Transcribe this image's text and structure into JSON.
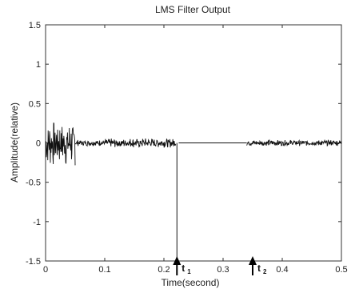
{
  "chart_data": {
    "type": "line",
    "title": "LMS Filter Output",
    "xlabel": "Time(second)",
    "ylabel": "Amplitude(relative)",
    "xlim": [
      0,
      0.5
    ],
    "ylim": [
      -1.5,
      1.5
    ],
    "x_ticks": [
      "0",
      "0.1",
      "0.2",
      "0.3",
      "0.4",
      "0.5"
    ],
    "y_ticks": [
      "1.5",
      "1",
      "0.5",
      "0",
      "-0.5",
      "-1",
      "-1.5"
    ],
    "grid": false,
    "series": [
      {
        "segments": [
          {
            "start": 0.0,
            "end": 0.05,
            "amplitude": 0.3
          },
          {
            "start": 0.05,
            "end": 0.1,
            "amplitude": 0.04
          },
          {
            "start": 0.1,
            "end": 0.22,
            "amplitude": 0.06
          },
          {
            "start": 0.222,
            "end": 0.222,
            "spike": -1.5
          },
          {
            "start": 0.225,
            "end": 0.34,
            "amplitude": 0.0
          },
          {
            "start": 0.34,
            "end": 0.5,
            "amplitude": 0.04
          }
        ]
      }
    ],
    "markers": [
      {
        "x": 0.222,
        "label": "t",
        "sub": "1"
      },
      {
        "x": 0.35,
        "label": "t",
        "sub": "2"
      }
    ]
  }
}
